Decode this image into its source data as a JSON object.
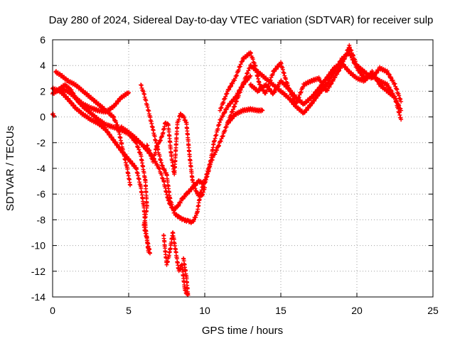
{
  "chart_data": {
    "type": "scatter",
    "title": "Day 280 of 2024, Sidereal Day-to-day VTEC variation (SDTVAR) for receiver sulp",
    "xlabel": "GPS time / hours",
    "ylabel": "SDTVAR / TECUs",
    "xlim": [
      0,
      25
    ],
    "ylim": [
      -14,
      6
    ],
    "xticks": [
      0,
      5,
      10,
      15,
      20,
      25
    ],
    "yticks": [
      -14,
      -12,
      -10,
      -8,
      -6,
      -4,
      -2,
      0,
      2,
      4,
      6
    ],
    "grid": true,
    "marker": "+",
    "color": "#ff0000",
    "series": [
      {
        "name": "trace-1",
        "points": [
          [
            0.0,
            1.8
          ],
          [
            0.5,
            2.2
          ],
          [
            1.0,
            2.0
          ],
          [
            1.5,
            1.5
          ],
          [
            2.0,
            1.0
          ],
          [
            2.5,
            0.7
          ],
          [
            3.0,
            0.5
          ],
          [
            3.5,
            0.4
          ],
          [
            4.0,
            0.8
          ],
          [
            4.5,
            1.5
          ],
          [
            5.0,
            1.9
          ]
        ]
      },
      {
        "name": "trace-2",
        "points": [
          [
            0.0,
            0.2
          ],
          [
            0.1,
            0.1
          ]
        ]
      },
      {
        "name": "trace-3",
        "points": [
          [
            0.2,
            3.5
          ],
          [
            0.6,
            3.2
          ],
          [
            1.0,
            2.8
          ],
          [
            1.5,
            2.5
          ],
          [
            2.0,
            2.0
          ],
          [
            2.5,
            1.5
          ],
          [
            3.0,
            1.0
          ],
          [
            3.5,
            0.5
          ],
          [
            4.0,
            0.0
          ],
          [
            4.3,
            -0.8
          ],
          [
            4.6,
            -2.5
          ],
          [
            4.9,
            -4.0
          ],
          [
            5.1,
            -5.3
          ]
        ]
      },
      {
        "name": "trace-4",
        "points": [
          [
            0.3,
            2.0
          ],
          [
            0.8,
            2.5
          ],
          [
            1.2,
            2.1
          ],
          [
            1.6,
            1.3
          ],
          [
            2.0,
            0.8
          ],
          [
            2.5,
            0.3
          ],
          [
            3.0,
            -0.2
          ],
          [
            3.5,
            -0.6
          ],
          [
            4.0,
            -0.8
          ],
          [
            4.5,
            -1.0
          ],
          [
            5.0,
            -1.3
          ],
          [
            5.5,
            -2.0
          ],
          [
            5.8,
            -3.0
          ],
          [
            6.1,
            -5.0
          ],
          [
            6.2,
            -7.0
          ],
          [
            6.0,
            -8.5
          ],
          [
            6.2,
            -9.5
          ],
          [
            6.4,
            -10.6
          ]
        ]
      },
      {
        "name": "trace-5",
        "points": [
          [
            0.0,
            2.2
          ],
          [
            0.5,
            2.0
          ],
          [
            1.0,
            1.4
          ],
          [
            1.5,
            0.7
          ],
          [
            2.0,
            0.2
          ],
          [
            2.5,
            -0.2
          ],
          [
            3.0,
            -0.5
          ],
          [
            3.5,
            -1.0
          ],
          [
            4.0,
            -1.8
          ],
          [
            4.5,
            -2.6
          ],
          [
            5.0,
            -3.3
          ],
          [
            5.5,
            -4.0
          ],
          [
            5.8,
            -5.5
          ],
          [
            6.0,
            -7.0
          ],
          [
            6.1,
            -8.5
          ],
          [
            6.3,
            -10.5
          ]
        ]
      },
      {
        "name": "trace-6",
        "points": [
          [
            4.5,
            -0.8
          ],
          [
            5.0,
            -1.2
          ],
          [
            5.5,
            -1.7
          ],
          [
            6.0,
            -2.3
          ],
          [
            6.5,
            -3.0
          ],
          [
            7.0,
            -4.0
          ],
          [
            7.3,
            -5.0
          ],
          [
            7.6,
            -6.5
          ],
          [
            7.9,
            -7.2
          ],
          [
            8.2,
            -7.0
          ],
          [
            8.5,
            -6.4
          ],
          [
            8.8,
            -6.0
          ],
          [
            9.2,
            -5.5
          ],
          [
            9.6,
            -5.0
          ],
          [
            10.0,
            -5.2
          ],
          [
            10.3,
            -4.0
          ],
          [
            10.6,
            -2.0
          ],
          [
            11.0,
            -0.3
          ],
          [
            11.5,
            0.8
          ],
          [
            12.0,
            1.5
          ],
          [
            12.5,
            2.5
          ],
          [
            13.0,
            3.2
          ]
        ]
      },
      {
        "name": "trace-7",
        "points": [
          [
            5.8,
            2.5
          ],
          [
            6.0,
            1.8
          ],
          [
            6.3,
            0.5
          ],
          [
            6.6,
            -1.0
          ],
          [
            6.9,
            -2.5
          ],
          [
            7.2,
            -3.8
          ],
          [
            7.5,
            -4.5
          ],
          [
            7.7,
            -6.3
          ],
          [
            8.0,
            -7.5
          ],
          [
            8.3,
            -7.8
          ],
          [
            8.6,
            -8.0
          ],
          [
            8.9,
            -8.1
          ],
          [
            9.2,
            -8.2
          ],
          [
            9.5,
            -7.5
          ],
          [
            9.7,
            -6.0
          ],
          [
            10.0,
            -5.0
          ],
          [
            10.3,
            -3.8
          ],
          [
            10.6,
            -3.0
          ],
          [
            11.0,
            -2.0
          ],
          [
            11.5,
            -0.5
          ],
          [
            12.0,
            0.2
          ],
          [
            12.5,
            0.5
          ],
          [
            13.0,
            0.6
          ],
          [
            13.5,
            0.5
          ],
          [
            13.8,
            0.5
          ]
        ]
      },
      {
        "name": "trace-8",
        "points": [
          [
            6.2,
            -2.2
          ],
          [
            6.4,
            -2.8
          ],
          [
            6.6,
            -3.5
          ],
          [
            6.8,
            -2.5
          ],
          [
            7.0,
            -2.0
          ],
          [
            7.2,
            -1.5
          ],
          [
            7.4,
            -0.5
          ],
          [
            7.6,
            -0.6
          ],
          [
            7.8,
            -3.0
          ],
          [
            8.0,
            -4.5
          ],
          [
            8.2,
            -0.5
          ],
          [
            8.4,
            0.2
          ],
          [
            8.6,
            0.0
          ],
          [
            8.8,
            -0.5
          ],
          [
            9.0,
            -3.0
          ],
          [
            9.2,
            -5.0
          ],
          [
            9.5,
            -6.0
          ],
          [
            9.8,
            -6.2
          ],
          [
            10.0,
            -5.5
          ]
        ]
      },
      {
        "name": "trace-9",
        "points": [
          [
            7.3,
            -9.2
          ],
          [
            7.5,
            -11.5
          ],
          [
            7.7,
            -10.5
          ],
          [
            7.9,
            -9.0
          ],
          [
            8.1,
            -10.5
          ],
          [
            8.3,
            -12.0
          ],
          [
            8.5,
            -11.5
          ],
          [
            8.7,
            -13.5
          ],
          [
            8.9,
            -13.9
          ],
          [
            8.8,
            -12.5
          ],
          [
            8.6,
            -11.0
          ]
        ]
      },
      {
        "name": "trace-10",
        "points": [
          [
            11.0,
            0.5
          ],
          [
            11.5,
            2.0
          ],
          [
            12.0,
            3.0
          ],
          [
            12.5,
            4.5
          ],
          [
            13.0,
            5.0
          ],
          [
            13.3,
            4.0
          ],
          [
            13.6,
            2.5
          ],
          [
            14.0,
            1.8
          ],
          [
            14.5,
            3.5
          ],
          [
            15.0,
            4.2
          ],
          [
            15.3,
            3.0
          ],
          [
            15.6,
            2.0
          ],
          [
            16.0,
            1.0
          ],
          [
            16.5,
            2.5
          ],
          [
            17.0,
            2.8
          ],
          [
            17.5,
            3.0
          ],
          [
            18.0,
            2.0
          ],
          [
            18.5,
            3.0
          ],
          [
            19.0,
            4.0
          ],
          [
            19.5,
            5.5
          ],
          [
            20.0,
            4.0
          ],
          [
            20.5,
            3.5
          ],
          [
            21.0,
            3.0
          ],
          [
            21.5,
            3.8
          ],
          [
            22.0,
            3.5
          ],
          [
            22.5,
            2.5
          ],
          [
            22.9,
            1.2
          ]
        ]
      },
      {
        "name": "trace-11",
        "points": [
          [
            11.5,
            -0.5
          ],
          [
            12.0,
            1.0
          ],
          [
            12.5,
            2.5
          ],
          [
            13.0,
            4.0
          ],
          [
            13.5,
            3.5
          ],
          [
            14.0,
            3.0
          ],
          [
            14.5,
            2.5
          ],
          [
            15.0,
            2.0
          ],
          [
            15.5,
            1.5
          ],
          [
            16.0,
            0.8
          ],
          [
            16.5,
            0.3
          ],
          [
            17.0,
            1.0
          ],
          [
            17.5,
            1.8
          ],
          [
            18.0,
            2.5
          ],
          [
            18.5,
            3.5
          ],
          [
            19.0,
            4.5
          ],
          [
            19.5,
            5.0
          ],
          [
            20.0,
            3.8
          ],
          [
            20.5,
            3.0
          ],
          [
            21.0,
            3.2
          ],
          [
            21.5,
            2.8
          ],
          [
            22.0,
            2.5
          ],
          [
            22.5,
            1.5
          ],
          [
            22.9,
            -0.2
          ]
        ]
      },
      {
        "name": "trace-12",
        "points": [
          [
            13.0,
            2.5
          ],
          [
            13.5,
            2.0
          ],
          [
            14.0,
            2.5
          ],
          [
            14.5,
            1.8
          ],
          [
            15.0,
            2.8
          ],
          [
            15.5,
            2.2
          ],
          [
            16.0,
            1.5
          ],
          [
            16.5,
            1.0
          ],
          [
            17.0,
            1.5
          ],
          [
            17.5,
            2.2
          ],
          [
            18.0,
            3.0
          ],
          [
            18.5,
            3.8
          ],
          [
            19.0,
            4.2
          ],
          [
            19.5,
            3.5
          ],
          [
            20.0,
            3.0
          ],
          [
            20.5,
            2.8
          ],
          [
            21.0,
            3.5
          ],
          [
            21.5,
            2.5
          ],
          [
            22.0,
            2.0
          ],
          [
            22.5,
            1.5
          ],
          [
            22.9,
            0.5
          ]
        ]
      }
    ]
  }
}
